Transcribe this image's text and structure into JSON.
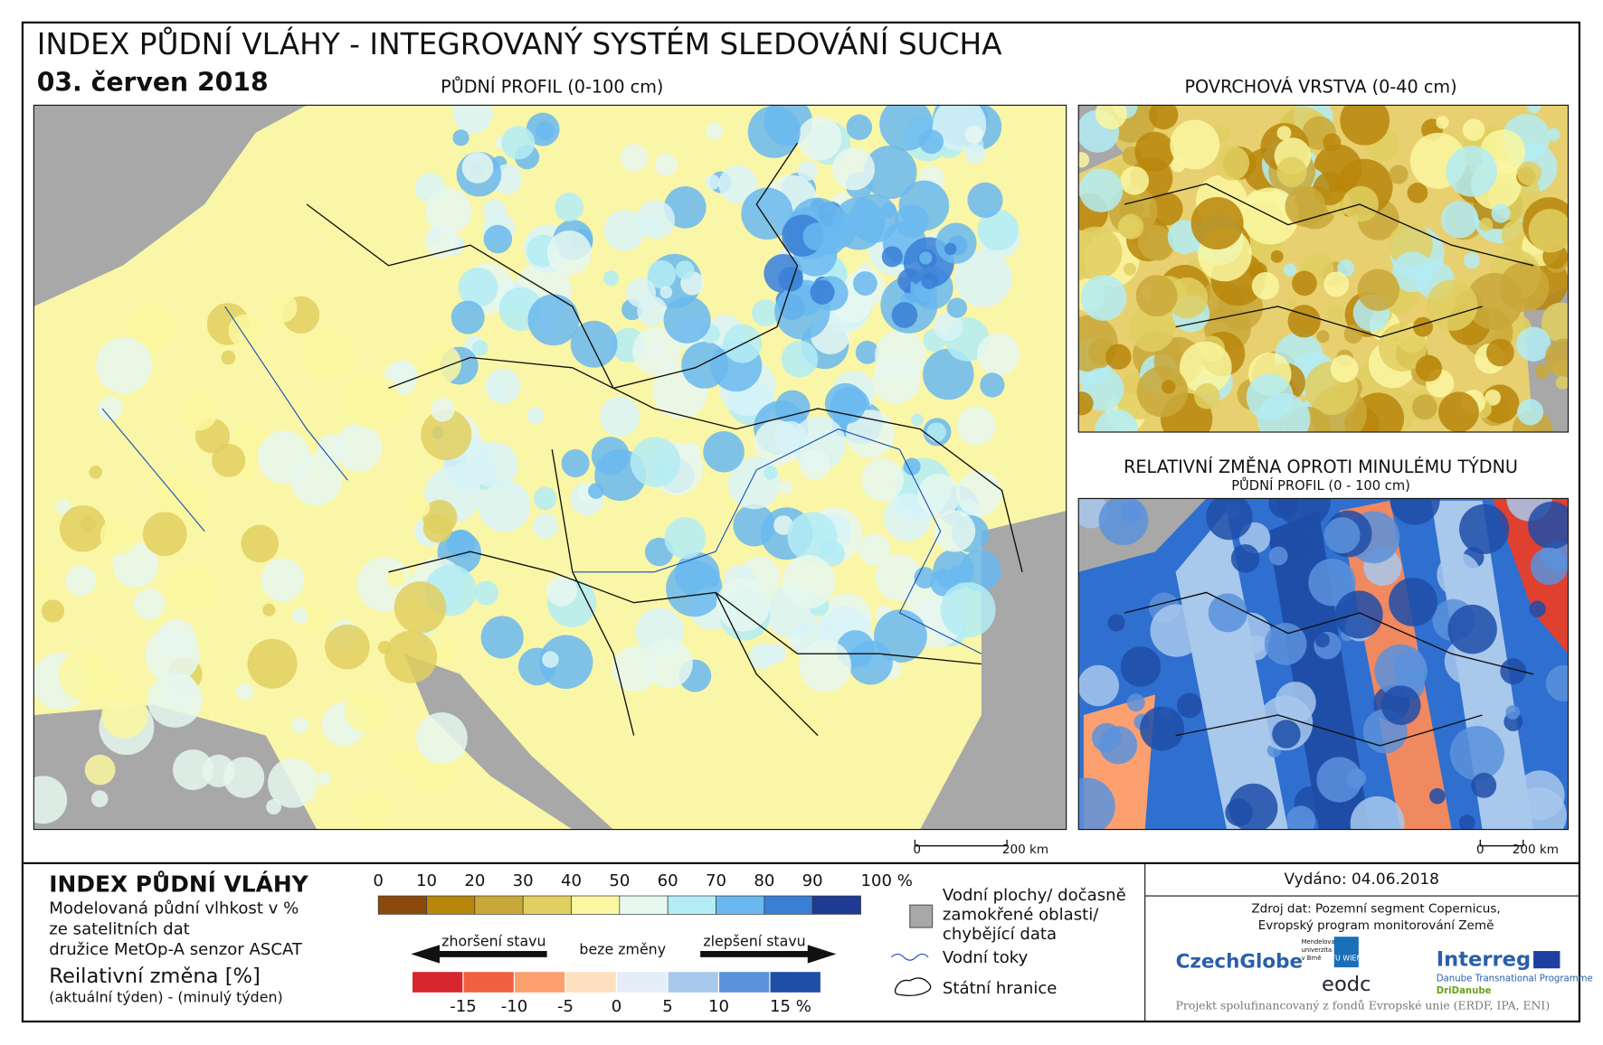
{
  "header": {
    "title": "INDEX PŮDNÍ VLÁHY - INTEGROVANÝ SYSTÉM SLEDOVÁNÍ SUCHA",
    "date": "03. červen 2018"
  },
  "maps": {
    "main": {
      "title": "PŮDNÍ PROFIL (0-100 cm)",
      "scale": [
        "0",
        "200 km"
      ]
    },
    "surface": {
      "title": "POVRCHOVÁ VRSTVA (0-40 cm)"
    },
    "change": {
      "title": "RELATIVNÍ ZMĚNA OPROTI MINULÉMU TÝDNU",
      "subtitle": "PŮDNÍ PROFIL (0 - 100 cm)",
      "scale": [
        "0",
        "200 km"
      ]
    }
  },
  "legend": {
    "title": "INDEX PŮDNÍ VLÁHY",
    "description": [
      "Modelovaná půdní vlhkost v %",
      "ze satelitních dat",
      "družice MetOp-A senzor ASCAT"
    ],
    "index_labels": [
      "0",
      "10",
      "20",
      "30",
      "40",
      "50",
      "60",
      "70",
      "80",
      "90",
      "100 %"
    ],
    "index_colors": [
      "#8b4a0b",
      "#b8860b",
      "#c9a83a",
      "#e0cf60",
      "#faf7a0",
      "#e6f7f0",
      "#b3ecf5",
      "#6ab8f0",
      "#3a7fd6",
      "#1f3a93"
    ],
    "change_title": "Reilativní změna [%]",
    "change_subtitle": "(aktuální týden) - (minulý týden)",
    "worse": "zhoršení stavu",
    "same": "beze změny",
    "better": "zlepšení stavu",
    "change_labels": [
      "-15",
      "-10",
      "-5",
      "0",
      "5",
      "10",
      "15 %"
    ],
    "change_colors": [
      "#d7262c",
      "#f06040",
      "#fca070",
      "#fde0c0",
      "#e4eef8",
      "#a8c8ec",
      "#5a92dc",
      "#1f4ea8"
    ],
    "symbols": {
      "water": [
        "Vodní plochy/ dočasně",
        "zamokřené oblasti/",
        "chybějící data"
      ],
      "rivers": "Vodní toky",
      "borders": "Státní hranice"
    }
  },
  "footer": {
    "issued": "Vydáno: 04.06.2018",
    "source": [
      "Zdroj dat: Pozemní segment Copernicus,",
      "Evropský program monitorování Země"
    ],
    "logos": {
      "czechglobe": "CzechGlobe",
      "mendel": [
        "Mendelova",
        "univerzita",
        "v Brně"
      ],
      "tuwien": "TU WIEN",
      "eodc": "eodc",
      "interreg": "Interreg",
      "programme": "Danube Transnational Programme",
      "project": "DriDanube"
    },
    "funding": "Projekt spolufinancovaný z fondů Evropské unie (ERDF, IPA, ENI)"
  }
}
